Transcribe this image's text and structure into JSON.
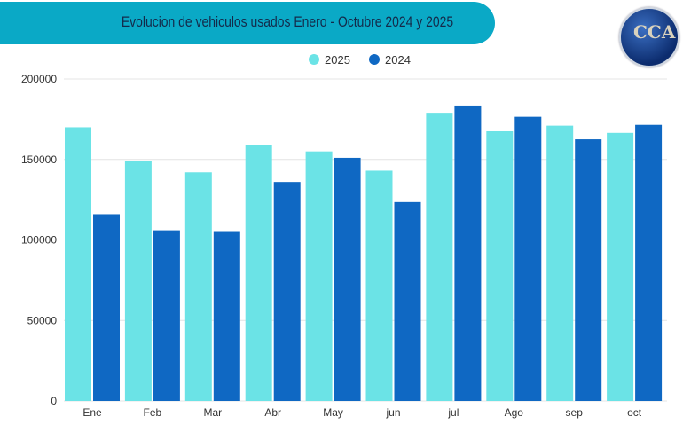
{
  "title": "Evolucion de vehiculos usados Enero - Octubre 2024 y 2025",
  "logo_text": "CCA",
  "chart_data": {
    "type": "bar",
    "title": "Evolucion de vehiculos usados Enero - Octubre 2024 y 2025",
    "categories": [
      "Ene",
      "Feb",
      "Mar",
      "Abr",
      "May",
      "jun",
      "jul",
      "Ago",
      "sep",
      "oct"
    ],
    "series": [
      {
        "name": "2025",
        "color": "#6be3e6",
        "values": [
          170000,
          149000,
          142000,
          159000,
          155000,
          143000,
          179000,
          167500,
          171000,
          166500
        ]
      },
      {
        "name": "2024",
        "color": "#0f68c3",
        "values": [
          116000,
          106000,
          105500,
          136000,
          151000,
          123500,
          183500,
          176500,
          162500,
          171500
        ]
      }
    ],
    "yticks": [
      "0",
      "50000",
      "100000",
      "150000",
      "200000"
    ],
    "ylim": [
      0,
      200000
    ],
    "grid": true,
    "legend": "top-center"
  }
}
